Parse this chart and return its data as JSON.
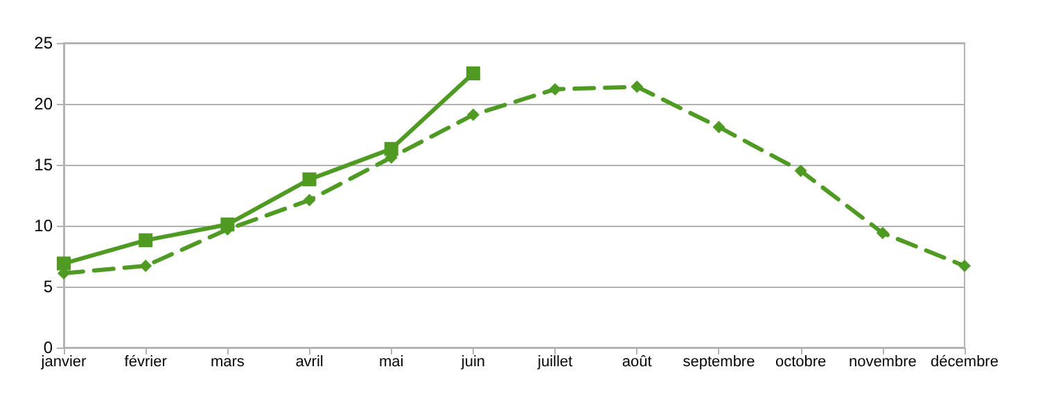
{
  "chart_data": {
    "type": "line",
    "categories": [
      "janvier",
      "février",
      "mars",
      "avril",
      "mai",
      "juin",
      "juillet",
      "août",
      "septembre",
      "octobre",
      "novembre",
      "décembre"
    ],
    "series": [
      {
        "color": "#4f9a23",
        "marker": "square",
        "line_style": "solid",
        "values": [
          6.9,
          8.8,
          10.1,
          13.8,
          16.3,
          22.5,
          null,
          null,
          null,
          null,
          null,
          null
        ]
      },
      {
        "color": "#4f9a23",
        "marker": "diamond",
        "line_style": "dashed",
        "values": [
          6.1,
          6.7,
          9.7,
          12.1,
          15.6,
          19.1,
          21.2,
          21.4,
          18.1,
          14.5,
          9.4,
          6.7
        ]
      }
    ],
    "ylim": [
      0,
      25
    ],
    "yticks": [
      0,
      5,
      10,
      15,
      20,
      25
    ],
    "grid": "y",
    "legend": false
  }
}
